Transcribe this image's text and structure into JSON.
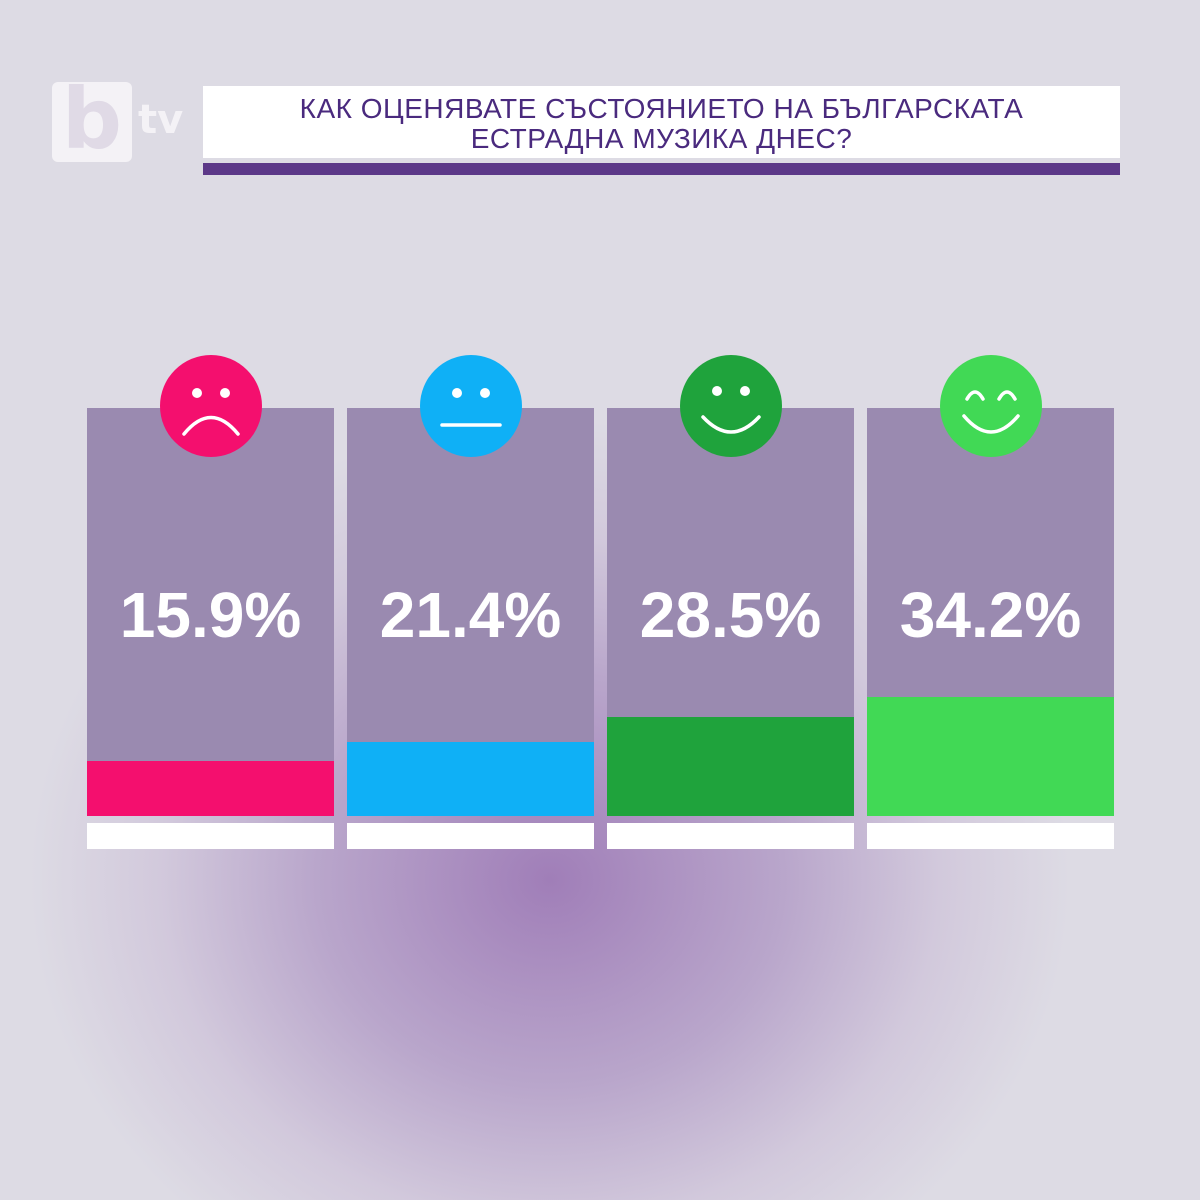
{
  "logo": {
    "b": "b",
    "tv": "tv"
  },
  "title": {
    "line1": "КАК ОЦЕНЯВАТЕ СЪСТОЯНИЕТО НА БЪЛГАРСКАТА",
    "line2": "ЕСТРАДНА МУЗИКА ДНЕС?"
  },
  "chart_data": {
    "type": "bar",
    "title": "КАК ОЦЕНЯВАТЕ СЪСТОЯНИЕТО НА БЪЛГАРСКАТА ЕСТРАДНА МУЗИКА ДНЕС?",
    "categories": [
      "sad",
      "neutral",
      "smile",
      "happy"
    ],
    "values": [
      15.9,
      21.4,
      28.5,
      34.2
    ],
    "labels": [
      "15.9%",
      "21.4%",
      "28.5%",
      "34.2%"
    ],
    "ylim": [
      0,
      100
    ],
    "colors": [
      "#f40f6e",
      "#0fb0f6",
      "#1fa33c",
      "#41d955"
    ],
    "icons": [
      "sad-face-icon",
      "neutral-face-icon",
      "smiling-face-icon",
      "happy-face-icon"
    ]
  }
}
